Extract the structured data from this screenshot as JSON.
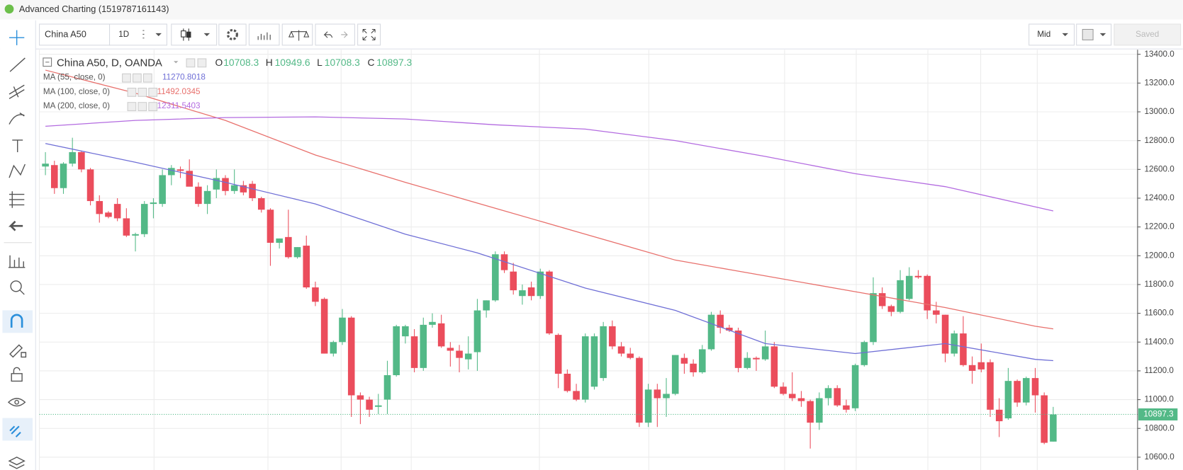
{
  "ui": {
    "window_title": "Advanced Charting (1519787161143)",
    "symbol": "China A50",
    "interval": "1D",
    "price_type": "Mid",
    "save": "Saved"
  },
  "chart_data": {
    "type": "candlestick",
    "title": "China A50, D, OANDA",
    "ohlc_labels": [
      "O",
      "H",
      "L",
      "C"
    ],
    "up_color": "#53b987",
    "down_color": "#eb4d5c",
    "grid": true,
    "ylim": [
      10511,
      13437
    ],
    "yticks": [
      {
        "value": 10600,
        "label": "10600.0"
      },
      {
        "value": 10800,
        "label": "10800.0"
      },
      {
        "value": 11000,
        "label": "11000.0"
      },
      {
        "value": 11200,
        "label": "11200.0"
      },
      {
        "value": 11400,
        "label": "11400.0"
      },
      {
        "value": 11600,
        "label": "11600.0"
      },
      {
        "value": 11800,
        "label": "11800.0"
      },
      {
        "value": 12000,
        "label": "12000.0"
      },
      {
        "value": 12200,
        "label": "12200.0"
      },
      {
        "value": 12400,
        "label": "12400.0"
      },
      {
        "value": 12600,
        "label": "12600.0"
      },
      {
        "value": 12800,
        "label": "12800.0"
      },
      {
        "value": 13000,
        "label": "13000.0"
      },
      {
        "value": 13200,
        "label": "13200.0"
      },
      {
        "value": 13400,
        "label": "13400.0"
      }
    ],
    "candles": {
      "open": [
        12620,
        12630,
        12470,
        12640,
        12720,
        12600,
        12380,
        12300,
        12360,
        12260,
        12140,
        12150,
        12360,
        12360,
        12560,
        12600,
        12590,
        12480,
        12360,
        12460,
        12540,
        12450,
        12490,
        12500,
        12400,
        12320,
        12090,
        12130,
        11990,
        12070,
        11780,
        11700,
        11320,
        11400,
        11570,
        11030,
        11000,
        10950,
        11000,
        11170,
        11440,
        11440,
        11220,
        11520,
        11530,
        11360,
        11340,
        11280,
        11330,
        11620,
        11690,
        12010,
        11890,
        11720,
        11780,
        11720,
        11890,
        11450,
        11180,
        11060,
        11000,
        11090,
        11150,
        11510,
        11370,
        11320,
        11290,
        10840,
        11070,
        11010,
        11040,
        11290,
        11250,
        11190,
        11350,
        11590,
        11500,
        11480,
        11220,
        11290,
        11280,
        11370,
        11090,
        11040,
        11010,
        10990,
        10840,
        11010,
        11080,
        10960,
        10940,
        11240,
        11400,
        11740,
        11650,
        11610,
        11700,
        11860,
        11860,
        11620,
        11590,
        11320,
        11460,
        11240,
        11260,
        11260,
        10930,
        10870,
        11130,
        10980,
        11150,
        11030,
        10708.3
      ],
      "high": [
        12720,
        12660,
        12650,
        12820,
        12730,
        12610,
        12420,
        12310,
        12400,
        12330,
        12160,
        12380,
        12400,
        12600,
        12630,
        12620,
        12670,
        12510,
        12490,
        12600,
        12560,
        12600,
        12520,
        12520,
        12410,
        12330,
        12120,
        12320,
        12060,
        12140,
        11820,
        11710,
        11410,
        11630,
        11580,
        11050,
        11020,
        11040,
        11270,
        11520,
        11520,
        11490,
        11570,
        11600,
        11590,
        11400,
        11380,
        11440,
        11700,
        11690,
        12030,
        12030,
        11950,
        11800,
        11820,
        11910,
        11900,
        11460,
        11210,
        11110,
        11460,
        11460,
        11540,
        11550,
        11400,
        11360,
        11300,
        11110,
        11110,
        11150,
        11310,
        11320,
        11280,
        11380,
        11610,
        11620,
        11520,
        11500,
        11330,
        11300,
        11480,
        11400,
        11120,
        11190,
        11060,
        11000,
        11050,
        11100,
        11100,
        11000,
        11250,
        11410,
        11850,
        11780,
        11660,
        11900,
        11920,
        11900,
        11870,
        11680,
        11590,
        11480,
        11580,
        11300,
        11390,
        11280,
        11010,
        11220,
        11140,
        11160,
        11220,
        11050,
        10949.6
      ],
      "low": [
        12560,
        12430,
        12430,
        12620,
        12580,
        12350,
        12230,
        12260,
        12240,
        12130,
        12030,
        12130,
        12260,
        12340,
        12490,
        12540,
        12490,
        12340,
        12290,
        12400,
        12420,
        12430,
        12420,
        12380,
        12300,
        11930,
        12050,
        11980,
        11980,
        11770,
        11650,
        11320,
        11300,
        11380,
        10880,
        10830,
        10880,
        10900,
        10900,
        11160,
        11390,
        11190,
        11200,
        11500,
        11360,
        11230,
        11190,
        11210,
        11200,
        11570,
        11680,
        11880,
        11730,
        11660,
        11690,
        11700,
        11450,
        11080,
        11050,
        10990,
        10980,
        11070,
        11130,
        11350,
        11300,
        11280,
        10810,
        10810,
        10810,
        10880,
        11030,
        11180,
        11160,
        11180,
        11340,
        11460,
        11470,
        11190,
        11210,
        11200,
        11270,
        11080,
        11030,
        10990,
        10950,
        10660,
        10790,
        10960,
        10950,
        10910,
        10920,
        11230,
        11380,
        11630,
        11580,
        11600,
        11690,
        11840,
        11560,
        11530,
        11260,
        11300,
        11230,
        11110,
        11190,
        10880,
        10740,
        10860,
        10950,
        10960,
        10910,
        10690,
        10708.3
      ],
      "close": [
        12640,
        12470,
        12640,
        12720,
        12600,
        12380,
        12290,
        12270,
        12260,
        12140,
        12150,
        12360,
        12370,
        12560,
        12610,
        12590,
        12480,
        12360,
        12450,
        12540,
        12450,
        12490,
        12440,
        12400,
        12320,
        12090,
        12120,
        11990,
        12060,
        11780,
        11680,
        11320,
        11400,
        11570,
        11030,
        11000,
        10930,
        10960,
        11170,
        11510,
        11510,
        11220,
        11520,
        11540,
        11370,
        11340,
        11290,
        11320,
        11620,
        11690,
        12010,
        11900,
        11760,
        11760,
        11720,
        11890,
        11460,
        11180,
        11060,
        11000,
        11440,
        11440,
        11510,
        11370,
        11320,
        11290,
        10840,
        11070,
        11010,
        11040,
        11310,
        11250,
        11190,
        11350,
        11590,
        11500,
        11480,
        11220,
        11290,
        11280,
        11370,
        11090,
        11040,
        11010,
        10990,
        10840,
        11010,
        11080,
        10960,
        10930,
        11240,
        11400,
        11740,
        11650,
        11610,
        11830,
        11860,
        11850,
        11620,
        11590,
        11320,
        11460,
        11240,
        11200,
        11210,
        10930,
        10850,
        11130,
        10980,
        11150,
        11030,
        10700,
        10897.3
      ]
    },
    "indicators": [
      {
        "name": "MA (55, close, 0)",
        "color": "#6f6fd6",
        "x": [
          0,
          10,
          20,
          30,
          40,
          48,
          60,
          70,
          80,
          90,
          100,
          110,
          112
        ],
        "values": [
          12780,
          12650,
          12510,
          12360,
          12150,
          12020,
          11775,
          11620,
          11390,
          11320,
          11390,
          11280,
          11270.8018
        ]
      },
      {
        "name": "MA (100, close, 0)",
        "color": "#e8706c",
        "x": [
          0,
          10,
          20,
          30,
          40,
          50,
          60,
          70,
          80,
          90,
          100,
          110,
          112
        ],
        "values": [
          13290,
          13130,
          12940,
          12700,
          12510,
          12330,
          12150,
          11970,
          11860,
          11750,
          11640,
          11510,
          11492.0345
        ]
      },
      {
        "name": "MA (200, close, 0)",
        "color": "#b36be0",
        "x": [
          0,
          10,
          20,
          30,
          40,
          50,
          60,
          70,
          80,
          90,
          100,
          110,
          112
        ],
        "values": [
          12900,
          12940,
          12960,
          12965,
          12950,
          12910,
          12880,
          12800,
          12690,
          12570,
          12480,
          12340,
          12311.5403
        ]
      }
    ]
  }
}
